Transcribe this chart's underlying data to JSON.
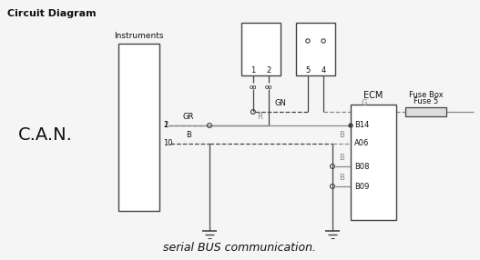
{
  "title": "Circuit Diagram",
  "subtitle": "serial BUS communication.",
  "bg_color": "#f5f5f5",
  "text_color": "#111111",
  "wire_color": "#444444",
  "gray_wire": "#888888",
  "can_label": "C.A.N.",
  "instruments_label": "Instruments",
  "ecm_label": "ECM",
  "fuse_box_label1": "Fuse Box",
  "fuse_box_label2": "Fuse 5",
  "ecm_pins": [
    "B14",
    "A06",
    "B08",
    "B09"
  ],
  "figsize": [
    5.27,
    2.86
  ],
  "dpi": 100
}
